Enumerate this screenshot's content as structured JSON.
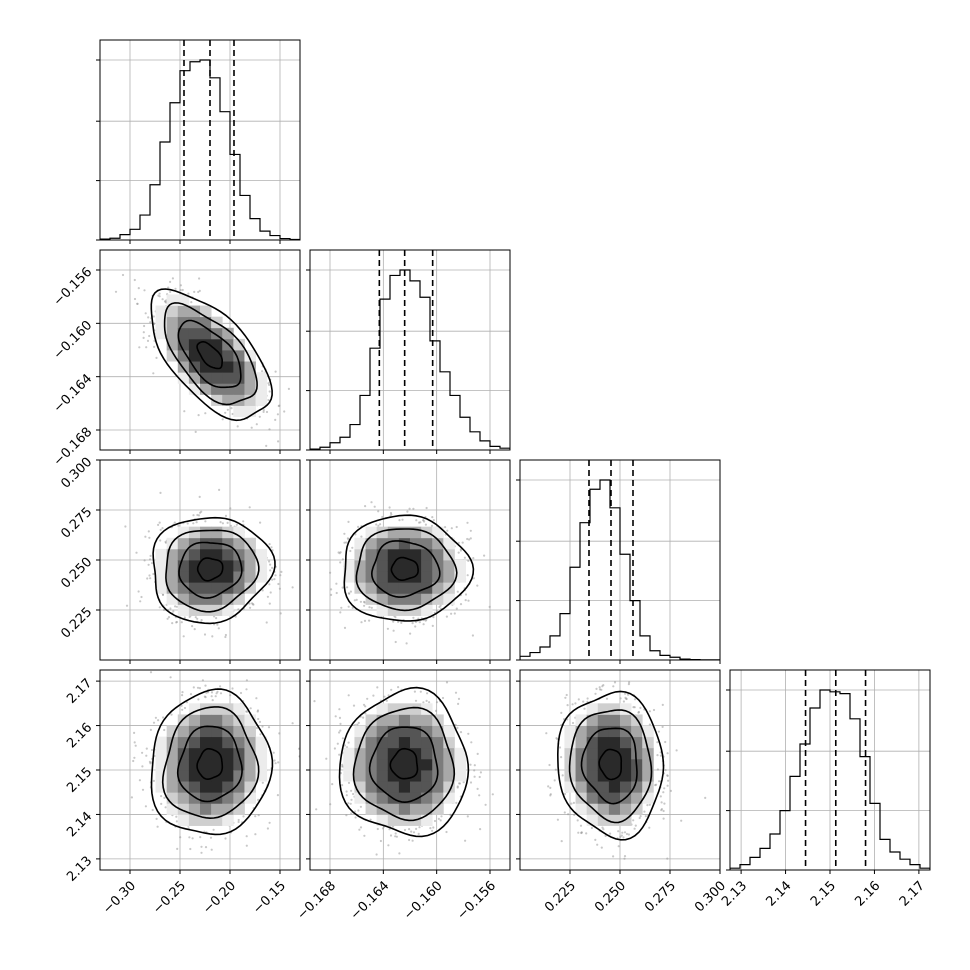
{
  "chart_data": {
    "type": "corner",
    "parameters": [
      {
        "range": [
          -0.33,
          -0.13
        ],
        "ticks": [
          -0.3,
          -0.25,
          -0.2,
          -0.15
        ],
        "tick_labels": [
          "−0.30",
          "−0.25",
          "−0.20",
          "−0.15"
        ],
        "quantiles": [
          -0.246,
          -0.22,
          -0.196
        ],
        "hist_bins": [
          0.005,
          0.01,
          0.03,
          0.06,
          0.14,
          0.31,
          0.55,
          0.77,
          0.95,
          1.0,
          1.01,
          0.91,
          0.72,
          0.48,
          0.25,
          0.12,
          0.05,
          0.025,
          0.008,
          0.003
        ]
      },
      {
        "range": [
          -0.1695,
          -0.1545
        ],
        "ticks": [
          -0.168,
          -0.164,
          -0.16,
          -0.156
        ],
        "tick_labels": [
          "−0.168",
          "−0.164",
          "−0.160",
          "−0.156"
        ],
        "quantiles": [
          -0.1643,
          -0.1624,
          -0.1603
        ],
        "hist_bins": [
          0.005,
          0.015,
          0.04,
          0.07,
          0.14,
          0.3,
          0.56,
          0.83,
          0.96,
          0.99,
          0.93,
          0.84,
          0.6,
          0.43,
          0.3,
          0.18,
          0.1,
          0.05,
          0.02,
          0.01
        ]
      },
      {
        "range": [
          0.2,
          0.3
        ],
        "ticks": [
          0.225,
          0.25,
          0.275,
          0.3
        ],
        "tick_labels": [
          "0.225",
          "0.250",
          "0.275",
          "0.300"
        ],
        "quantiles": [
          0.2345,
          0.2455,
          0.2565
        ],
        "hist_bins": [
          0.02,
          0.04,
          0.07,
          0.13,
          0.25,
          0.5,
          0.74,
          0.92,
          0.97,
          0.82,
          0.57,
          0.32,
          0.13,
          0.05,
          0.025,
          0.015,
          0.005,
          0.002,
          0.001,
          0.0005
        ]
      },
      {
        "range": [
          2.1275,
          2.1725
        ],
        "ticks": [
          2.13,
          2.14,
          2.15,
          2.16,
          2.17
        ],
        "tick_labels": [
          "2.13",
          "2.14",
          "2.15",
          "2.16",
          "2.17"
        ],
        "quantiles": [
          2.1445,
          2.1513,
          2.158
        ],
        "hist_bins": [
          0.01,
          0.03,
          0.07,
          0.12,
          0.2,
          0.33,
          0.52,
          0.7,
          0.9,
          1.0,
          0.99,
          0.98,
          0.84,
          0.63,
          0.37,
          0.17,
          0.1,
          0.06,
          0.03,
          0.01
        ]
      }
    ],
    "pairs": [
      {
        "x": 0,
        "y": 1,
        "corr": -0.6
      },
      {
        "x": 0,
        "y": 2,
        "corr": 0.05
      },
      {
        "x": 1,
        "y": 2,
        "corr": 0.0
      },
      {
        "x": 0,
        "y": 3,
        "corr": 0.05
      },
      {
        "x": 1,
        "y": 3,
        "corr": 0.0
      },
      {
        "x": 2,
        "y": 3,
        "corr": -0.05
      }
    ],
    "grid": true,
    "title": "",
    "xlabel": "",
    "ylabel": ""
  },
  "colors": {
    "line": "#000000",
    "points": "#9a9a9a",
    "grid": "#b0b0b0",
    "density_levels": [
      "#ececec",
      "#cfcfcf",
      "#a8a8a8",
      "#7c7c7c",
      "#555555",
      "#2a2a2a"
    ]
  }
}
